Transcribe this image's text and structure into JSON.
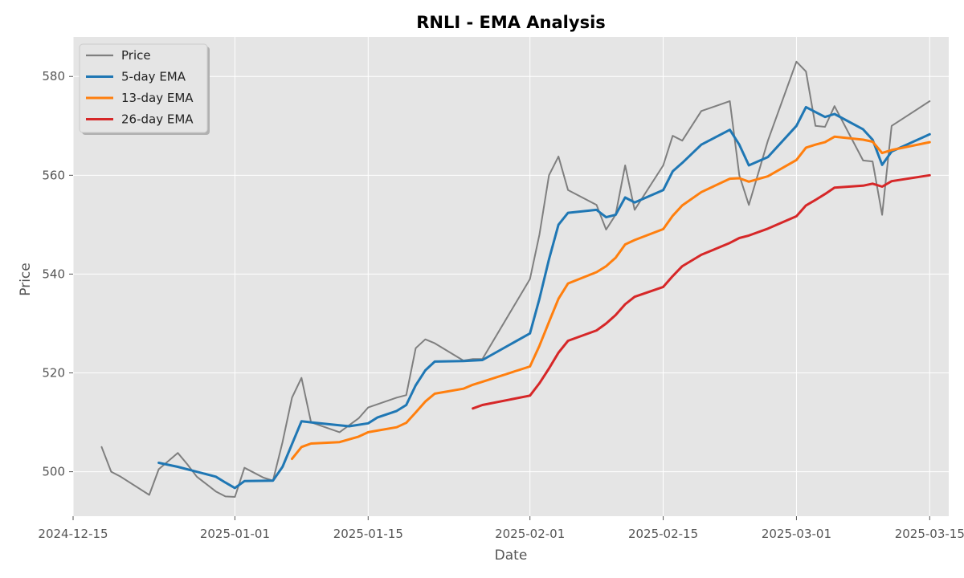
{
  "chart_data": {
    "type": "line",
    "title": "RNLI - EMA Analysis",
    "xlabel": "Date",
    "ylabel": "Price",
    "ylim": [
      491,
      588
    ],
    "xlim": [
      "2024-12-15",
      "2025-03-17"
    ],
    "grid": true,
    "legend_placement": "top-left",
    "x_ticks": [
      "2024-12-15",
      "2025-01-01",
      "2025-01-15",
      "2025-02-01",
      "2025-02-15",
      "2025-03-01",
      "2025-03-15"
    ],
    "y_ticks": [
      500,
      520,
      540,
      560,
      580
    ],
    "series": [
      {
        "name": "Price",
        "color": "#7f7f7f",
        "points": [
          [
            "2024-12-18",
            505
          ],
          [
            "2024-12-19",
            500
          ],
          [
            "2024-12-20",
            499
          ],
          [
            "2024-12-23",
            495.3
          ],
          [
            "2024-12-24",
            500.5
          ],
          [
            "2024-12-26",
            503.8
          ],
          [
            "2024-12-27",
            501.5
          ],
          [
            "2024-12-28",
            499
          ],
          [
            "2024-12-30",
            496
          ],
          [
            "2024-12-31",
            495
          ],
          [
            "2025-01-01",
            494.9
          ],
          [
            "2025-01-02",
            500.8
          ],
          [
            "2025-01-03",
            499.8
          ],
          [
            "2025-01-04",
            498.8
          ],
          [
            "2025-01-05",
            498.2
          ],
          [
            "2025-01-06",
            506
          ],
          [
            "2025-01-07",
            515
          ],
          [
            "2025-01-08",
            519
          ],
          [
            "2025-01-09",
            510
          ],
          [
            "2025-01-12",
            508
          ],
          [
            "2025-01-14",
            510.8
          ],
          [
            "2025-01-15",
            513
          ],
          [
            "2025-01-18",
            515
          ],
          [
            "2025-01-19",
            515.5
          ],
          [
            "2025-01-20",
            525
          ],
          [
            "2025-01-21",
            526.8
          ],
          [
            "2025-01-22",
            526
          ],
          [
            "2025-01-25",
            522.5
          ],
          [
            "2025-01-26",
            522.8
          ],
          [
            "2025-01-27",
            522.8
          ],
          [
            "2025-02-01",
            539
          ],
          [
            "2025-02-02",
            548
          ],
          [
            "2025-02-03",
            560
          ],
          [
            "2025-02-04",
            563.8
          ],
          [
            "2025-02-05",
            557
          ],
          [
            "2025-02-08",
            554
          ],
          [
            "2025-02-09",
            549
          ],
          [
            "2025-02-10",
            552
          ],
          [
            "2025-02-11",
            562
          ],
          [
            "2025-02-12",
            553
          ],
          [
            "2025-02-15",
            562
          ],
          [
            "2025-02-16",
            568
          ],
          [
            "2025-02-17",
            567
          ],
          [
            "2025-02-19",
            573
          ],
          [
            "2025-02-22",
            575
          ],
          [
            "2025-02-23",
            560
          ],
          [
            "2025-02-24",
            554
          ],
          [
            "2025-02-26",
            567
          ],
          [
            "2025-03-01",
            583
          ],
          [
            "2025-03-02",
            581
          ],
          [
            "2025-03-03",
            570
          ],
          [
            "2025-03-04",
            569.8
          ],
          [
            "2025-03-05",
            574
          ],
          [
            "2025-03-08",
            563
          ],
          [
            "2025-03-09",
            562.8
          ],
          [
            "2025-03-10",
            552
          ],
          [
            "2025-03-11",
            570
          ],
          [
            "2025-03-15",
            575
          ]
        ]
      },
      {
        "name": "5-day EMA",
        "color": "#1f77b4",
        "points": [
          [
            "2024-12-24",
            501.8
          ],
          [
            "2024-12-26",
            501
          ],
          [
            "2024-12-30",
            499
          ],
          [
            "2024-12-31",
            497.8
          ],
          [
            "2025-01-01",
            496.7
          ],
          [
            "2025-01-02",
            498.1
          ],
          [
            "2025-01-05",
            498.2
          ],
          [
            "2025-01-06",
            501
          ],
          [
            "2025-01-08",
            510.2
          ],
          [
            "2025-01-09",
            510
          ],
          [
            "2025-01-13",
            509.2
          ],
          [
            "2025-01-15",
            509.8
          ],
          [
            "2025-01-16",
            511
          ],
          [
            "2025-01-18",
            512.3
          ],
          [
            "2025-01-19",
            513.5
          ],
          [
            "2025-01-20",
            517.5
          ],
          [
            "2025-01-21",
            520.5
          ],
          [
            "2025-01-22",
            522.3
          ],
          [
            "2025-01-25",
            522.4
          ],
          [
            "2025-01-27",
            522.6
          ],
          [
            "2025-02-01",
            528
          ],
          [
            "2025-02-02",
            535
          ],
          [
            "2025-02-03",
            543
          ],
          [
            "2025-02-04",
            550
          ],
          [
            "2025-02-05",
            552.4
          ],
          [
            "2025-02-08",
            553
          ],
          [
            "2025-02-09",
            551.5
          ],
          [
            "2025-02-10",
            552
          ],
          [
            "2025-02-11",
            555.5
          ],
          [
            "2025-02-12",
            554.5
          ],
          [
            "2025-02-15",
            557
          ],
          [
            "2025-02-16",
            560.8
          ],
          [
            "2025-02-17",
            562.5
          ],
          [
            "2025-02-19",
            566.2
          ],
          [
            "2025-02-22",
            569.2
          ],
          [
            "2025-02-23",
            566.2
          ],
          [
            "2025-02-24",
            562
          ],
          [
            "2025-02-26",
            563.7
          ],
          [
            "2025-03-01",
            570
          ],
          [
            "2025-03-02",
            573.8
          ],
          [
            "2025-03-03",
            572.8
          ],
          [
            "2025-03-04",
            571.8
          ],
          [
            "2025-03-05",
            572.4
          ],
          [
            "2025-03-08",
            569.3
          ],
          [
            "2025-03-09",
            567.2
          ],
          [
            "2025-03-10",
            562.1
          ],
          [
            "2025-03-11",
            564.8
          ],
          [
            "2025-03-15",
            568.3
          ]
        ]
      },
      {
        "name": "13-day EMA",
        "color": "#ff7f0e",
        "points": [
          [
            "2025-01-07",
            502.6
          ],
          [
            "2025-01-08",
            505
          ],
          [
            "2025-01-09",
            505.7
          ],
          [
            "2025-01-12",
            506
          ],
          [
            "2025-01-14",
            507.1
          ],
          [
            "2025-01-15",
            508
          ],
          [
            "2025-01-18",
            509
          ],
          [
            "2025-01-19",
            509.9
          ],
          [
            "2025-01-20",
            512
          ],
          [
            "2025-01-21",
            514.2
          ],
          [
            "2025-01-22",
            515.8
          ],
          [
            "2025-01-25",
            516.8
          ],
          [
            "2025-01-26",
            517.6
          ],
          [
            "2025-01-27",
            518.2
          ],
          [
            "2025-02-01",
            521.3
          ],
          [
            "2025-02-02",
            525.5
          ],
          [
            "2025-02-03",
            530.3
          ],
          [
            "2025-02-04",
            535
          ],
          [
            "2025-02-05",
            538.1
          ],
          [
            "2025-02-08",
            540.4
          ],
          [
            "2025-02-09",
            541.6
          ],
          [
            "2025-02-10",
            543.3
          ],
          [
            "2025-02-11",
            546
          ],
          [
            "2025-02-12",
            546.9
          ],
          [
            "2025-02-15",
            549.1
          ],
          [
            "2025-02-16",
            551.8
          ],
          [
            "2025-02-17",
            553.9
          ],
          [
            "2025-02-19",
            556.6
          ],
          [
            "2025-02-22",
            559.3
          ],
          [
            "2025-02-23",
            559.4
          ],
          [
            "2025-02-24",
            558.7
          ],
          [
            "2025-02-26",
            559.8
          ],
          [
            "2025-03-01",
            563.1
          ],
          [
            "2025-03-02",
            565.6
          ],
          [
            "2025-03-03",
            566.2
          ],
          [
            "2025-03-04",
            566.7
          ],
          [
            "2025-03-05",
            567.8
          ],
          [
            "2025-03-08",
            567.2
          ],
          [
            "2025-03-09",
            566.8
          ],
          [
            "2025-03-10",
            564.5
          ],
          [
            "2025-03-11",
            565.1
          ],
          [
            "2025-03-15",
            566.7
          ]
        ]
      },
      {
        "name": "26-day EMA",
        "color": "#d62728",
        "points": [
          [
            "2025-01-26",
            512.8
          ],
          [
            "2025-01-27",
            513.5
          ],
          [
            "2025-02-01",
            515.4
          ],
          [
            "2025-02-02",
            517.9
          ],
          [
            "2025-02-03",
            520.9
          ],
          [
            "2025-02-04",
            524.1
          ],
          [
            "2025-02-05",
            526.5
          ],
          [
            "2025-02-08",
            528.6
          ],
          [
            "2025-02-09",
            530
          ],
          [
            "2025-02-10",
            531.7
          ],
          [
            "2025-02-11",
            533.9
          ],
          [
            "2025-02-12",
            535.4
          ],
          [
            "2025-02-15",
            537.4
          ],
          [
            "2025-02-16",
            539.6
          ],
          [
            "2025-02-17",
            541.6
          ],
          [
            "2025-02-19",
            543.9
          ],
          [
            "2025-02-22",
            546.3
          ],
          [
            "2025-02-23",
            547.3
          ],
          [
            "2025-02-24",
            547.8
          ],
          [
            "2025-02-26",
            549.2
          ],
          [
            "2025-03-01",
            551.7
          ],
          [
            "2025-03-02",
            553.9
          ],
          [
            "2025-03-03",
            555
          ],
          [
            "2025-03-04",
            556.2
          ],
          [
            "2025-03-05",
            557.5
          ],
          [
            "2025-03-08",
            557.9
          ],
          [
            "2025-03-09",
            558.3
          ],
          [
            "2025-03-10",
            557.7
          ],
          [
            "2025-03-11",
            558.8
          ],
          [
            "2025-03-15",
            560
          ]
        ]
      }
    ]
  }
}
